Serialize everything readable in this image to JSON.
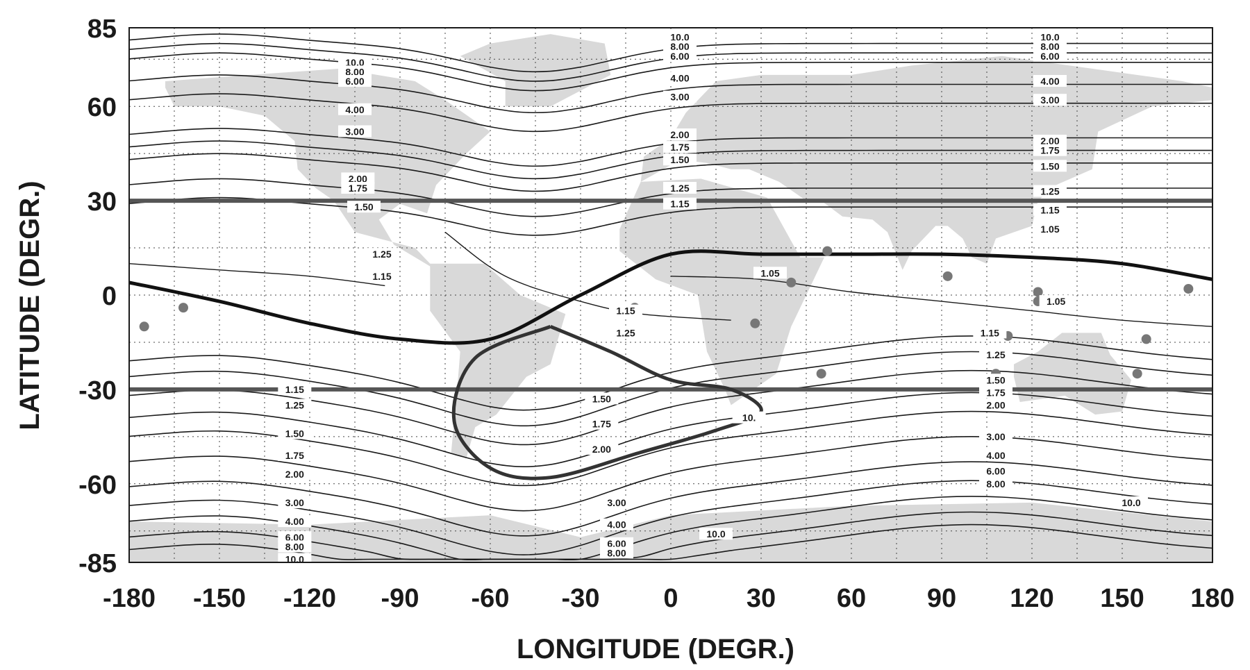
{
  "chart_data": {
    "type": "line",
    "title": "",
    "xlabel": "LONGITUDE (DEGR.)",
    "ylabel": "LATITUDE (DEGR.)",
    "xlim": [
      -180,
      180
    ],
    "ylim": [
      -85,
      85
    ],
    "x_ticks": [
      "-180",
      "-150",
      "-120",
      "-90",
      "-60",
      "-30",
      "0",
      "30",
      "60",
      "90",
      "120",
      "150",
      "180"
    ],
    "y_ticks": [
      "85",
      "60",
      "30",
      "0",
      "-30",
      "-60",
      "-85"
    ],
    "x_tick_values": [
      -180,
      -150,
      -120,
      -90,
      -60,
      -30,
      0,
      30,
      60,
      90,
      120,
      150,
      180
    ],
    "y_tick_values": [
      85,
      60,
      30,
      0,
      -30,
      -60,
      -85
    ],
    "grid": true,
    "background": "world map",
    "reference_lines": [
      {
        "lat": 30,
        "color": "#555555"
      },
      {
        "lat": -30,
        "color": "#555555"
      }
    ],
    "contour_values": [
      "10.0",
      "8.00",
      "6.00",
      "4.00",
      "3.00",
      "2.00",
      "1.75",
      "1.50",
      "1.25",
      "1.15",
      "1.05"
    ],
    "contour_labels": [
      {
        "text": "10.0",
        "x": -105,
        "y": 74
      },
      {
        "text": "8.00",
        "x": -105,
        "y": 71
      },
      {
        "text": "6.00",
        "x": -105,
        "y": 68
      },
      {
        "text": "4.00",
        "x": -105,
        "y": 59
      },
      {
        "text": "3.00",
        "x": -105,
        "y": 52
      },
      {
        "text": "2.00",
        "x": -104,
        "y": 37
      },
      {
        "text": "1.75",
        "x": -104,
        "y": 34
      },
      {
        "text": "1.50",
        "x": -102,
        "y": 28
      },
      {
        "text": "1.25",
        "x": -96,
        "y": 13
      },
      {
        "text": "1.15",
        "x": -96,
        "y": 6
      },
      {
        "text": "10.0",
        "x": 3,
        "y": 82
      },
      {
        "text": "8.00",
        "x": 3,
        "y": 79
      },
      {
        "text": "6.00",
        "x": 3,
        "y": 76
      },
      {
        "text": "4.00",
        "x": 3,
        "y": 69
      },
      {
        "text": "3.00",
        "x": 3,
        "y": 63
      },
      {
        "text": "2.00",
        "x": 3,
        "y": 51
      },
      {
        "text": "1.75",
        "x": 3,
        "y": 47
      },
      {
        "text": "1.50",
        "x": 3,
        "y": 43
      },
      {
        "text": "1.25",
        "x": 3,
        "y": 34
      },
      {
        "text": "1.15",
        "x": 3,
        "y": 29
      },
      {
        "text": "10.0",
        "x": 126,
        "y": 82
      },
      {
        "text": "8.00",
        "x": 126,
        "y": 79
      },
      {
        "text": "6.00",
        "x": 126,
        "y": 76
      },
      {
        "text": "4.00",
        "x": 126,
        "y": 68
      },
      {
        "text": "3.00",
        "x": 126,
        "y": 62
      },
      {
        "text": "2.00",
        "x": 126,
        "y": 49
      },
      {
        "text": "1.75",
        "x": 126,
        "y": 46
      },
      {
        "text": "1.50",
        "x": 126,
        "y": 41
      },
      {
        "text": "1.25",
        "x": 126,
        "y": 33
      },
      {
        "text": "1.15",
        "x": 126,
        "y": 27
      },
      {
        "text": "1.05",
        "x": 126,
        "y": 21
      },
      {
        "text": "1.05",
        "x": 33,
        "y": 7
      },
      {
        "text": "1.05",
        "x": 128,
        "y": -2
      },
      {
        "text": "1.15",
        "x": -15,
        "y": -5
      },
      {
        "text": "1.25",
        "x": -15,
        "y": -12
      },
      {
        "text": "1.15",
        "x": 106,
        "y": -12
      },
      {
        "text": "1.25",
        "x": 108,
        "y": -19
      },
      {
        "text": "1.50",
        "x": 108,
        "y": -27
      },
      {
        "text": "1.75",
        "x": 108,
        "y": -31
      },
      {
        "text": "2.00",
        "x": 108,
        "y": -35
      },
      {
        "text": "3.00",
        "x": 108,
        "y": -45
      },
      {
        "text": "4.00",
        "x": 108,
        "y": -51
      },
      {
        "text": "6.00",
        "x": 108,
        "y": -56
      },
      {
        "text": "8.00",
        "x": 108,
        "y": -60
      },
      {
        "text": "1.15",
        "x": -125,
        "y": -30
      },
      {
        "text": "1.25",
        "x": -125,
        "y": -35
      },
      {
        "text": "1.50",
        "x": -125,
        "y": -44
      },
      {
        "text": "1.75",
        "x": -125,
        "y": -51
      },
      {
        "text": "2.00",
        "x": -125,
        "y": -57
      },
      {
        "text": "3.00",
        "x": -125,
        "y": -66
      },
      {
        "text": "4.00",
        "x": -125,
        "y": -72
      },
      {
        "text": "6.00",
        "x": -125,
        "y": -77
      },
      {
        "text": "8.00",
        "x": -125,
        "y": -80
      },
      {
        "text": "10.0",
        "x": -125,
        "y": -84
      },
      {
        "text": "1.50",
        "x": -23,
        "y": -33
      },
      {
        "text": "1.75",
        "x": -23,
        "y": -41
      },
      {
        "text": "2.00",
        "x": -23,
        "y": -49
      },
      {
        "text": "3.00",
        "x": -18,
        "y": -66
      },
      {
        "text": "4.00",
        "x": -18,
        "y": -73
      },
      {
        "text": "6.00",
        "x": -18,
        "y": -79
      },
      {
        "text": "8.00",
        "x": -18,
        "y": -82
      },
      {
        "text": "10.",
        "x": 26,
        "y": -39
      },
      {
        "text": "10.0",
        "x": 15,
        "y": -76
      },
      {
        "text": "10.0",
        "x": 153,
        "y": -66
      }
    ],
    "series": [
      {
        "values": [
          [
            -180,
            4
          ],
          [
            -150,
            -2
          ],
          [
            -120,
            -9
          ],
          [
            -90,
            -14
          ],
          [
            -60,
            -14
          ],
          [
            -30,
            0
          ],
          [
            0,
            13
          ],
          [
            30,
            13
          ],
          [
            60,
            13
          ],
          [
            90,
            13
          ],
          [
            120,
            12
          ],
          [
            150,
            10
          ],
          [
            180,
            5
          ]
        ]
      },
      {
        "values": [
          [
            -40,
            -10
          ],
          [
            -20,
            -18
          ],
          [
            0,
            -27
          ],
          [
            20,
            -30
          ],
          [
            30,
            -37
          ],
          [
            15,
            -43
          ],
          [
            -10,
            -50
          ],
          [
            -40,
            -58
          ],
          [
            -60,
            -55
          ],
          [
            -72,
            -40
          ],
          [
            -65,
            -20
          ],
          [
            -40,
            -10
          ]
        ]
      }
    ],
    "points": [
      [
        -175,
        -10
      ],
      [
        -162,
        -4
      ],
      [
        -12,
        -4
      ],
      [
        28,
        -9
      ],
      [
        40,
        4
      ],
      [
        52,
        14
      ],
      [
        92,
        6
      ],
      [
        122,
        1
      ],
      [
        122,
        -2
      ],
      [
        112,
        -13
      ],
      [
        108,
        -25
      ],
      [
        50,
        -25
      ],
      [
        158,
        -14
      ],
      [
        155,
        -25
      ],
      [
        172,
        2
      ]
    ]
  }
}
